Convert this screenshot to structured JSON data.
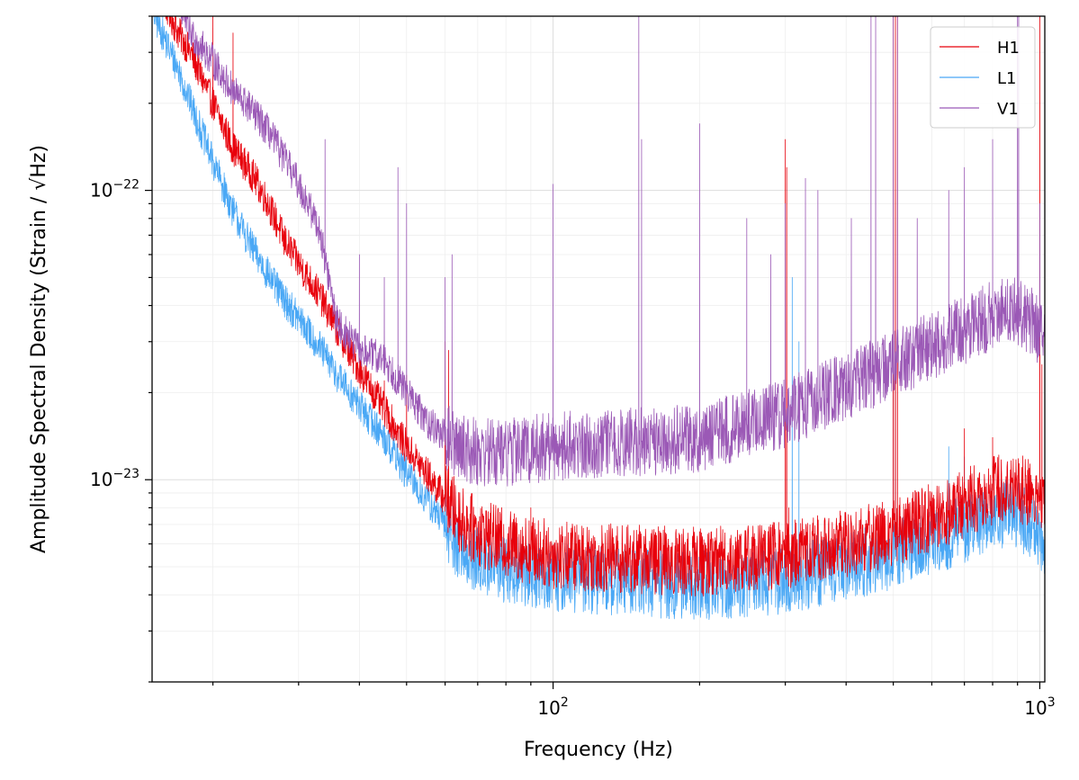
{
  "chart_data": {
    "type": "line",
    "xlabel": "Frequency (Hz)",
    "ylabel": "Amplitude Spectral Density (Strain / √Hz)",
    "xscale": "log",
    "yscale": "log",
    "xlim": [
      15,
      1024
    ],
    "ylim": [
      2e-24,
      4e-22
    ],
    "x_ticks": [
      {
        "value": 100,
        "label": "10",
        "exp": "2"
      },
      {
        "value": 1000,
        "label": "10",
        "exp": "3"
      }
    ],
    "y_ticks": [
      {
        "value": 1e-23,
        "label": "10",
        "exp": "−23"
      },
      {
        "value": 1e-22,
        "label": "10",
        "exp": "−22"
      }
    ],
    "grid": true,
    "legend": "top-right",
    "series": [
      {
        "name": "H1",
        "color": "#e8000b",
        "baseline": [
          [
            15,
            5.5e-22
          ],
          [
            17,
            3.5e-22
          ],
          [
            18,
            3e-22
          ],
          [
            20,
            2e-22
          ],
          [
            22,
            1.4e-22
          ],
          [
            24,
            1.15e-22
          ],
          [
            26,
            9e-23
          ],
          [
            28,
            6.8e-23
          ],
          [
            30,
            5.6e-23
          ],
          [
            33,
            4.4e-23
          ],
          [
            36,
            3.3e-23
          ],
          [
            40,
            2.4e-23
          ],
          [
            45,
            1.75e-23
          ],
          [
            50,
            1.3e-23
          ],
          [
            55,
            1.05e-23
          ],
          [
            60,
            8.6e-24
          ],
          [
            65,
            7.2e-24
          ],
          [
            70,
            6.6e-24
          ],
          [
            80,
            6e-24
          ],
          [
            100,
            5.5e-24
          ],
          [
            150,
            5.3e-24
          ],
          [
            200,
            5.2e-24
          ],
          [
            300,
            5.5e-24
          ],
          [
            400,
            6e-24
          ],
          [
            500,
            6.6e-24
          ],
          [
            600,
            7.4e-24
          ],
          [
            700,
            8.3e-24
          ],
          [
            800,
            9.2e-24
          ],
          [
            880,
            9.6e-24
          ],
          [
            950,
            9e-24
          ],
          [
            1024,
            8.3e-24
          ]
        ],
        "spikes": [
          [
            20,
            4e-22
          ],
          [
            22,
            3.5e-22
          ],
          [
            28,
            6e-23
          ],
          [
            30,
            6e-23
          ],
          [
            35,
            4e-23
          ],
          [
            45,
            2.2e-23
          ],
          [
            50,
            2.3e-23
          ],
          [
            60,
            3e-23
          ],
          [
            61,
            2.8e-23
          ],
          [
            90,
            8e-24
          ],
          [
            300,
            1.5e-22
          ],
          [
            302,
            1.2e-22
          ],
          [
            305,
            8e-24
          ],
          [
            500,
            4e-22
          ],
          [
            505,
            4e-22
          ],
          [
            510,
            4e-22
          ],
          [
            700,
            1.5e-23
          ],
          [
            800,
            1.4e-23
          ],
          [
            1000,
            4e-22
          ],
          [
            1010,
            2.5e-23
          ]
        ]
      },
      {
        "name": "L1",
        "color": "#4aa8f5",
        "baseline": [
          [
            15,
            4.2e-22
          ],
          [
            17,
            2.6e-22
          ],
          [
            18,
            2e-22
          ],
          [
            20,
            1.25e-22
          ],
          [
            22,
            8.5e-23
          ],
          [
            24,
            6.4e-23
          ],
          [
            26,
            5.1e-23
          ],
          [
            28,
            4.2e-23
          ],
          [
            30,
            3.6e-23
          ],
          [
            33,
            2.9e-23
          ],
          [
            36,
            2.3e-23
          ],
          [
            40,
            1.8e-23
          ],
          [
            45,
            1.4e-23
          ],
          [
            50,
            1.05e-23
          ],
          [
            55,
            8.5e-24
          ],
          [
            60,
            7e-24
          ],
          [
            65,
            5.7e-24
          ],
          [
            70,
            5.2e-24
          ],
          [
            80,
            4.9e-24
          ],
          [
            100,
            4.6e-24
          ],
          [
            150,
            4.4e-24
          ],
          [
            200,
            4.3e-24
          ],
          [
            300,
            4.5e-24
          ],
          [
            400,
            5e-24
          ],
          [
            500,
            5.5e-24
          ],
          [
            600,
            6.1e-24
          ],
          [
            700,
            6.8e-24
          ],
          [
            800,
            7.5e-24
          ],
          [
            880,
            7.8e-24
          ],
          [
            950,
            7e-24
          ],
          [
            1024,
            6.2e-24
          ]
        ],
        "spikes": [
          [
            22,
            8e-23
          ],
          [
            60,
            1.1e-23
          ],
          [
            310,
            5e-23
          ],
          [
            320,
            3e-23
          ],
          [
            350,
            7e-24
          ],
          [
            500,
            3e-23
          ],
          [
            505,
            3e-23
          ],
          [
            650,
            1.3e-23
          ],
          [
            700,
            1.2e-23
          ]
        ]
      },
      {
        "name": "V1",
        "color": "#9b59b6",
        "baseline": [
          [
            15,
            6e-22
          ],
          [
            17,
            4.5e-22
          ],
          [
            18,
            3.5e-22
          ],
          [
            20,
            2.8e-22
          ],
          [
            22,
            2.2e-22
          ],
          [
            24,
            1.9e-22
          ],
          [
            26,
            1.6e-22
          ],
          [
            28,
            1.3e-22
          ],
          [
            30,
            1.05e-22
          ],
          [
            33,
            7.5e-23
          ],
          [
            36,
            3.5e-23
          ],
          [
            40,
            2.8e-23
          ],
          [
            45,
            2.6e-23
          ],
          [
            50,
            2e-23
          ],
          [
            55,
            1.6e-23
          ],
          [
            60,
            1.4e-23
          ],
          [
            65,
            1.3e-23
          ],
          [
            70,
            1.25e-23
          ],
          [
            80,
            1.25e-23
          ],
          [
            100,
            1.3e-23
          ],
          [
            150,
            1.35e-23
          ],
          [
            200,
            1.4e-23
          ],
          [
            300,
            1.7e-23
          ],
          [
            400,
            2.1e-23
          ],
          [
            500,
            2.5e-23
          ],
          [
            600,
            2.9e-23
          ],
          [
            700,
            3.3e-23
          ],
          [
            800,
            3.7e-23
          ],
          [
            880,
            3.9e-23
          ],
          [
            950,
            3.6e-23
          ],
          [
            1024,
            3.1e-23
          ]
        ],
        "spikes": [
          [
            34,
            1.5e-22
          ],
          [
            40,
            6e-23
          ],
          [
            45,
            5e-23
          ],
          [
            48,
            1.2e-22
          ],
          [
            50,
            9e-23
          ],
          [
            60,
            5e-23
          ],
          [
            62,
            6e-23
          ],
          [
            100,
            1.05e-22
          ],
          [
            150,
            4e-22
          ],
          [
            152,
            1.5e-22
          ],
          [
            200,
            1.7e-22
          ],
          [
            250,
            8e-23
          ],
          [
            280,
            6e-23
          ],
          [
            300,
            9e-23
          ],
          [
            330,
            1.1e-22
          ],
          [
            350,
            1e-22
          ],
          [
            410,
            8e-23
          ],
          [
            450,
            4e-22
          ],
          [
            460,
            4e-22
          ],
          [
            500,
            4e-22
          ],
          [
            510,
            4e-22
          ],
          [
            560,
            8e-23
          ],
          [
            650,
            1e-22
          ],
          [
            700,
            1.2e-22
          ],
          [
            800,
            1.5e-22
          ],
          [
            900,
            4e-22
          ],
          [
            905,
            4e-22
          ],
          [
            1000,
            9e-23
          ]
        ]
      }
    ]
  }
}
